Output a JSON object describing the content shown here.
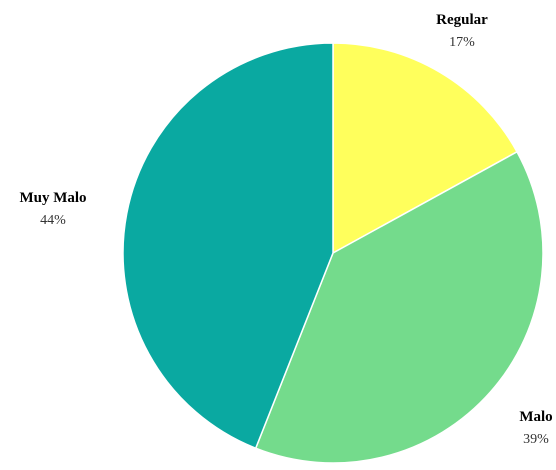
{
  "chart_data": {
    "type": "pie",
    "slices": [
      {
        "label": "Regular",
        "value": 17,
        "percent_label": "17%",
        "color": "#ffff5c"
      },
      {
        "label": "Malo",
        "value": 39,
        "percent_label": "39%",
        "color": "#74db8c"
      },
      {
        "label": "Muy Malo",
        "value": 44,
        "percent_label": "44%",
        "color": "#0aa9a1"
      }
    ],
    "start": "12 o'clock",
    "direction": "clockwise",
    "legend": "none",
    "labels": "outside slices"
  }
}
